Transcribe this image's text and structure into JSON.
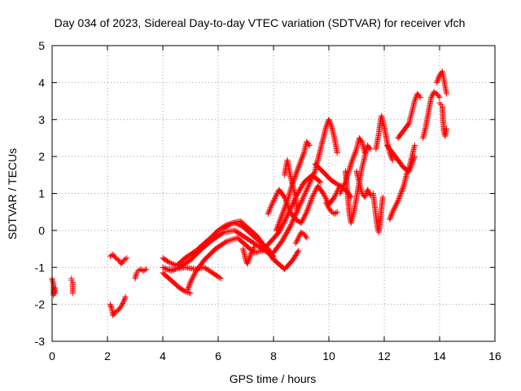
{
  "chart_data": {
    "type": "scatter",
    "title": "Day 034 of 2023, Sidereal Day-to-day VTEC variation (SDTVAR) for receiver vfch",
    "xlabel": "GPS time / hours",
    "ylabel": "SDTVAR / TECUs",
    "xlim": [
      0,
      16
    ],
    "ylim": [
      -3,
      5
    ],
    "xticks": [
      0,
      2,
      4,
      6,
      8,
      10,
      12,
      14,
      16
    ],
    "xtick_labels": [
      "0",
      "2",
      "4",
      "6",
      "8",
      "10",
      "12",
      "14",
      "16"
    ],
    "yticks": [
      -3,
      -2,
      -1,
      0,
      1,
      2,
      3,
      4,
      5
    ],
    "ytick_labels": [
      "-3",
      "-2",
      "-1",
      "0",
      "1",
      "2",
      "3",
      "4",
      "5"
    ],
    "grid": true,
    "grid_style": "dotted",
    "marker": "+",
    "color": "#ff0000",
    "series": [
      {
        "values": [
          [
            0.0,
            -1.3
          ],
          [
            0.05,
            -1.45
          ],
          [
            0.05,
            -1.6
          ],
          [
            0.05,
            -1.75
          ],
          [
            0.1,
            -1.55
          ],
          [
            0.1,
            -1.7
          ]
        ]
      },
      {
        "values": [
          [
            0.7,
            -1.3
          ],
          [
            0.7,
            -1.35
          ],
          [
            0.75,
            -1.4
          ],
          [
            0.75,
            -1.7
          ]
        ]
      },
      {
        "values": [
          [
            2.1,
            -0.7
          ],
          [
            2.2,
            -0.65
          ],
          [
            2.3,
            -0.75
          ],
          [
            2.4,
            -0.8
          ],
          [
            2.5,
            -0.9
          ],
          [
            2.6,
            -0.8
          ],
          [
            2.7,
            -0.75
          ]
        ]
      },
      {
        "values": [
          [
            2.1,
            -2.0
          ],
          [
            2.15,
            -2.1
          ],
          [
            2.2,
            -2.3
          ],
          [
            2.3,
            -2.2
          ],
          [
            2.4,
            -2.15
          ],
          [
            2.5,
            -2.05
          ],
          [
            2.6,
            -1.9
          ],
          [
            2.65,
            -1.8
          ]
        ]
      },
      {
        "values": [
          [
            3.0,
            -1.3
          ],
          [
            3.05,
            -1.15
          ],
          [
            3.1,
            -1.1
          ],
          [
            3.2,
            -1.05
          ],
          [
            3.3,
            -1.1
          ],
          [
            3.4,
            -1.05
          ]
        ]
      },
      {
        "values": [
          [
            4.0,
            -0.75
          ],
          [
            4.2,
            -0.85
          ],
          [
            4.5,
            -0.95
          ],
          [
            4.8,
            -0.75
          ],
          [
            5.2,
            -0.55
          ],
          [
            5.5,
            -0.35
          ],
          [
            5.8,
            -0.15
          ],
          [
            6.0,
            0.0
          ],
          [
            6.3,
            0.15
          ],
          [
            6.6,
            0.2
          ],
          [
            6.9,
            0.1
          ],
          [
            7.2,
            -0.1
          ],
          [
            7.5,
            -0.3
          ],
          [
            7.8,
            -0.5
          ],
          [
            8.0,
            -0.7
          ]
        ]
      },
      {
        "values": [
          [
            4.0,
            -1.0
          ],
          [
            4.3,
            -1.1
          ],
          [
            4.6,
            -1.0
          ],
          [
            5.0,
            -0.8
          ],
          [
            5.4,
            -0.5
          ],
          [
            5.8,
            -0.25
          ],
          [
            6.2,
            -0.05
          ],
          [
            6.6,
            0.0
          ],
          [
            7.0,
            -0.2
          ],
          [
            7.4,
            -0.4
          ],
          [
            7.8,
            -0.6
          ],
          [
            8.1,
            -0.85
          ],
          [
            8.4,
            -1.05
          ],
          [
            8.7,
            -0.8
          ],
          [
            8.9,
            -0.55
          ]
        ]
      },
      {
        "values": [
          [
            4.0,
            -1.15
          ],
          [
            4.3,
            -1.35
          ],
          [
            4.6,
            -1.55
          ],
          [
            4.8,
            -1.65
          ],
          [
            5.0,
            -1.7
          ]
        ]
      },
      {
        "values": [
          [
            4.9,
            -1.6
          ],
          [
            5.0,
            -1.4
          ],
          [
            5.2,
            -1.1
          ],
          [
            5.5,
            -0.8
          ],
          [
            5.9,
            -0.5
          ],
          [
            6.3,
            -0.3
          ],
          [
            6.7,
            -0.2
          ],
          [
            7.0,
            -0.4
          ],
          [
            7.3,
            -0.6
          ],
          [
            7.6,
            -0.55
          ],
          [
            7.9,
            -0.3
          ],
          [
            8.2,
            -0.05
          ],
          [
            8.5,
            0.4
          ],
          [
            8.8,
            0.9
          ],
          [
            9.1,
            1.3
          ],
          [
            9.4,
            1.5
          ],
          [
            9.7,
            1.3
          ]
        ]
      },
      {
        "values": [
          [
            4.1,
            -1.05
          ],
          [
            4.4,
            -1.05
          ],
          [
            4.8,
            -1.0
          ],
          [
            5.2,
            -1.05
          ],
          [
            5.5,
            -1.0
          ],
          [
            5.8,
            -1.15
          ],
          [
            6.0,
            -1.25
          ],
          [
            6.1,
            -1.3
          ]
        ]
      },
      {
        "values": [
          [
            6.2,
            0.05
          ],
          [
            6.5,
            0.2
          ],
          [
            6.8,
            0.25
          ],
          [
            7.1,
            0.05
          ],
          [
            7.4,
            -0.15
          ],
          [
            7.7,
            -0.45
          ],
          [
            7.9,
            -0.6
          ],
          [
            8.0,
            -0.8
          ]
        ]
      },
      {
        "values": [
          [
            6.9,
            -0.5
          ],
          [
            6.95,
            -0.65
          ],
          [
            7.0,
            -0.8
          ],
          [
            7.05,
            -0.9
          ],
          [
            7.2,
            -0.6
          ],
          [
            7.3,
            -0.45
          ]
        ]
      },
      {
        "values": [
          [
            7.8,
            0.45
          ],
          [
            8.0,
            0.8
          ],
          [
            8.2,
            1.1
          ],
          [
            8.4,
            0.9
          ],
          [
            8.6,
            0.5
          ],
          [
            8.8,
            0.3
          ],
          [
            9.0,
            0.2
          ],
          [
            9.2,
            0.5
          ],
          [
            9.4,
            0.9
          ],
          [
            9.6,
            1.2
          ],
          [
            9.8,
            1.0
          ],
          [
            10.0,
            0.7
          ],
          [
            10.2,
            0.9
          ],
          [
            10.4,
            1.2
          ],
          [
            10.6,
            1.1
          ],
          [
            10.8,
            0.9
          ]
        ]
      },
      {
        "values": [
          [
            8.0,
            -0.6
          ],
          [
            8.3,
            -0.3
          ],
          [
            8.6,
            0.1
          ],
          [
            8.9,
            0.6
          ],
          [
            9.2,
            1.1
          ],
          [
            9.5,
            1.6
          ],
          [
            9.7,
            2.2
          ],
          [
            9.9,
            2.8
          ],
          [
            10.0,
            3.0
          ],
          [
            10.1,
            2.8
          ],
          [
            10.2,
            2.5
          ],
          [
            10.3,
            2.1
          ]
        ]
      },
      {
        "values": [
          [
            8.1,
            0.0
          ],
          [
            8.3,
            0.4
          ],
          [
            8.5,
            0.8
          ],
          [
            8.7,
            1.3
          ],
          [
            8.9,
            1.7
          ],
          [
            9.1,
            2.1
          ],
          [
            9.2,
            2.4
          ],
          [
            9.3,
            2.3
          ]
        ]
      },
      {
        "values": [
          [
            8.4,
            1.5
          ],
          [
            8.5,
            1.9
          ],
          [
            8.6,
            1.5
          ],
          [
            8.7,
            1.2
          ],
          [
            8.8,
            0.9
          ],
          [
            8.85,
            0.5
          ]
        ]
      },
      {
        "values": [
          [
            8.8,
            -0.35
          ],
          [
            8.9,
            -0.2
          ],
          [
            9.0,
            -0.05
          ],
          [
            9.1,
            -0.1
          ],
          [
            9.2,
            -0.2
          ]
        ]
      },
      {
        "values": [
          [
            9.5,
            1.8
          ],
          [
            9.7,
            1.65
          ],
          [
            9.9,
            1.5
          ],
          [
            10.1,
            1.35
          ],
          [
            10.3,
            1.25
          ],
          [
            10.45,
            1.2
          ]
        ]
      },
      {
        "values": [
          [
            9.9,
            0.75
          ],
          [
            10.0,
            0.6
          ],
          [
            10.1,
            0.5
          ],
          [
            10.2,
            0.45
          ],
          [
            10.3,
            0.5
          ]
        ]
      },
      {
        "values": [
          [
            10.4,
            1.0
          ],
          [
            10.6,
            1.3
          ],
          [
            10.8,
            1.8
          ],
          [
            11.0,
            2.2
          ],
          [
            11.1,
            2.5
          ],
          [
            11.2,
            2.4
          ],
          [
            11.3,
            2.1
          ]
        ]
      },
      {
        "values": [
          [
            10.6,
            1.6
          ],
          [
            10.65,
            1.2
          ],
          [
            10.7,
            0.8
          ],
          [
            10.75,
            0.4
          ],
          [
            10.8,
            0.2
          ],
          [
            10.9,
            0.5
          ],
          [
            11.0,
            0.9
          ],
          [
            11.1,
            1.3
          ],
          [
            11.2,
            1.7
          ],
          [
            11.3,
            2.0
          ],
          [
            11.4,
            2.3
          ],
          [
            11.5,
            2.2
          ]
        ]
      },
      {
        "values": [
          [
            11.0,
            1.6
          ],
          [
            11.1,
            1.3
          ],
          [
            11.2,
            1.0
          ],
          [
            11.3,
            0.9
          ],
          [
            11.4,
            1.1
          ],
          [
            11.5,
            0.95
          ]
        ]
      },
      {
        "values": [
          [
            11.6,
            1.0
          ],
          [
            11.65,
            0.7
          ],
          [
            11.7,
            0.4
          ],
          [
            11.75,
            0.1
          ],
          [
            11.8,
            -0.05
          ],
          [
            11.85,
            0.2
          ],
          [
            11.9,
            0.6
          ],
          [
            11.95,
            0.9
          ]
        ]
      },
      {
        "values": [
          [
            11.7,
            2.2
          ],
          [
            11.8,
            2.6
          ],
          [
            11.85,
            2.9
          ],
          [
            11.9,
            3.1
          ],
          [
            12.0,
            2.8
          ],
          [
            12.1,
            2.4
          ],
          [
            12.2,
            2.1
          ],
          [
            12.3,
            1.9
          ]
        ]
      },
      {
        "values": [
          [
            12.1,
            2.3
          ],
          [
            12.3,
            2.1
          ],
          [
            12.5,
            1.9
          ],
          [
            12.7,
            1.7
          ],
          [
            12.9,
            1.6
          ],
          [
            13.0,
            1.8
          ],
          [
            13.1,
            2.0
          ]
        ]
      },
      {
        "values": [
          [
            12.2,
            0.3
          ],
          [
            12.3,
            0.5
          ],
          [
            12.5,
            0.8
          ],
          [
            12.7,
            1.2
          ],
          [
            12.8,
            1.5
          ],
          [
            12.9,
            1.7
          ],
          [
            13.0,
            2.0
          ],
          [
            13.1,
            2.3
          ]
        ]
      },
      {
        "values": [
          [
            12.5,
            2.5
          ],
          [
            12.7,
            2.7
          ],
          [
            12.9,
            2.9
          ],
          [
            13.0,
            3.2
          ],
          [
            13.1,
            3.5
          ],
          [
            13.2,
            3.7
          ],
          [
            13.3,
            3.6
          ]
        ]
      },
      {
        "values": [
          [
            13.4,
            2.5
          ],
          [
            13.5,
            2.8
          ],
          [
            13.6,
            3.2
          ],
          [
            13.7,
            3.6
          ],
          [
            13.8,
            3.75
          ],
          [
            13.9,
            3.7
          ],
          [
            14.0,
            3.6
          ]
        ]
      },
      {
        "values": [
          [
            13.9,
            4.0
          ],
          [
            14.0,
            4.2
          ],
          [
            14.1,
            4.3
          ],
          [
            14.15,
            4.1
          ],
          [
            14.2,
            3.9
          ],
          [
            14.25,
            3.7
          ]
        ]
      },
      {
        "values": [
          [
            14.0,
            3.45
          ],
          [
            14.05,
            3.4
          ],
          [
            14.1,
            3.35
          ],
          [
            14.15,
            2.7
          ],
          [
            14.2,
            2.55
          ],
          [
            14.25,
            2.75
          ]
        ]
      }
    ]
  }
}
